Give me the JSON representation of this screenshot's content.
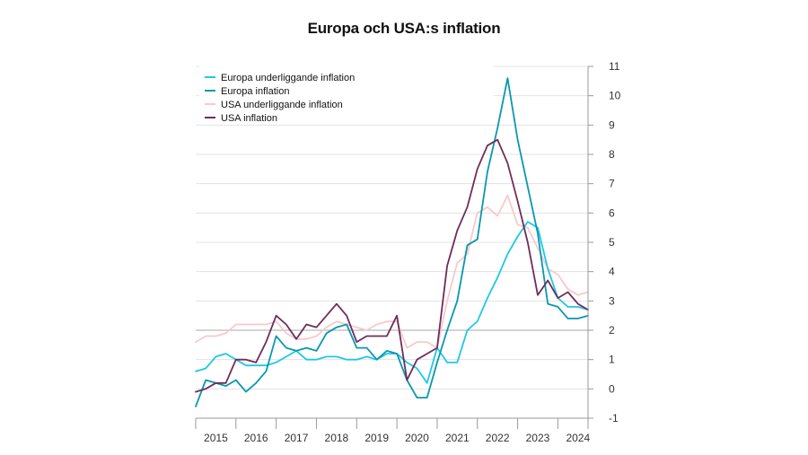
{
  "chart_data": {
    "type": "line",
    "title": "Europa och USA:s inflation",
    "xlabel": "",
    "ylabel": "",
    "ylim": [
      -1,
      11
    ],
    "y_ticks": [
      "-1",
      "0",
      "1",
      "2",
      "3",
      "4",
      "5",
      "6",
      "7",
      "8",
      "9",
      "10",
      "11"
    ],
    "x_ticks": [
      "2015",
      "2016",
      "2017",
      "2018",
      "2019",
      "2020",
      "2021",
      "2022",
      "2023",
      "2024"
    ],
    "x_range": [
      2015.0,
      2024.75
    ],
    "reference_line": 2,
    "legend_position": "top-left",
    "series": [
      {
        "name": "Europa underliggande inflation",
        "color": "#20c8e4",
        "x": [
          2015.0,
          2015.25,
          2015.5,
          2015.75,
          2016.0,
          2016.25,
          2016.5,
          2016.75,
          2017.0,
          2017.25,
          2017.5,
          2017.75,
          2018.0,
          2018.25,
          2018.5,
          2018.75,
          2019.0,
          2019.25,
          2019.5,
          2019.75,
          2020.0,
          2020.25,
          2020.5,
          2020.75,
          2021.0,
          2021.25,
          2021.5,
          2021.75,
          2022.0,
          2022.25,
          2022.5,
          2022.75,
          2023.0,
          2023.25,
          2023.5,
          2023.75,
          2024.0,
          2024.25,
          2024.5,
          2024.75
        ],
        "values": [
          0.6,
          0.7,
          1.1,
          1.2,
          1.0,
          0.8,
          0.8,
          0.8,
          0.9,
          1.1,
          1.3,
          1.0,
          1.0,
          1.1,
          1.1,
          1.0,
          1.0,
          1.1,
          1.0,
          1.2,
          1.2,
          0.9,
          0.7,
          0.2,
          1.4,
          0.9,
          0.9,
          2.0,
          2.3,
          3.1,
          3.8,
          4.6,
          5.2,
          5.7,
          5.5,
          4.1,
          3.1,
          2.8,
          2.8,
          2.7
        ]
      },
      {
        "name": "Europa inflation",
        "color": "#0a98ad",
        "x": [
          2015.0,
          2015.25,
          2015.5,
          2015.75,
          2016.0,
          2016.25,
          2016.5,
          2016.75,
          2017.0,
          2017.25,
          2017.5,
          2017.75,
          2018.0,
          2018.25,
          2018.5,
          2018.75,
          2019.0,
          2019.25,
          2019.5,
          2019.75,
          2020.0,
          2020.25,
          2020.5,
          2020.75,
          2021.0,
          2021.25,
          2021.5,
          2021.75,
          2022.0,
          2022.25,
          2022.5,
          2022.75,
          2023.0,
          2023.25,
          2023.5,
          2023.75,
          2024.0,
          2024.25,
          2024.5,
          2024.75
        ],
        "values": [
          -0.6,
          0.3,
          0.2,
          0.1,
          0.3,
          -0.1,
          0.2,
          0.6,
          1.8,
          1.4,
          1.3,
          1.4,
          1.3,
          1.9,
          2.1,
          2.2,
          1.4,
          1.4,
          1.0,
          1.3,
          1.2,
          0.3,
          -0.3,
          -0.3,
          0.9,
          2.0,
          3.0,
          4.9,
          5.1,
          7.4,
          8.9,
          10.6,
          8.5,
          6.9,
          5.3,
          2.9,
          2.8,
          2.4,
          2.4,
          2.5
        ]
      },
      {
        "name": "USA underliggande inflation",
        "color": "#f8c9cc",
        "x": [
          2015.0,
          2015.25,
          2015.5,
          2015.75,
          2016.0,
          2016.25,
          2016.5,
          2016.75,
          2017.0,
          2017.25,
          2017.5,
          2017.75,
          2018.0,
          2018.25,
          2018.5,
          2018.75,
          2019.0,
          2019.25,
          2019.5,
          2019.75,
          2020.0,
          2020.25,
          2020.5,
          2020.75,
          2021.0,
          2021.25,
          2021.5,
          2021.75,
          2022.0,
          2022.25,
          2022.5,
          2022.75,
          2023.0,
          2023.25,
          2023.5,
          2023.75,
          2024.0,
          2024.25,
          2024.5,
          2024.75
        ],
        "values": [
          1.6,
          1.8,
          1.8,
          1.9,
          2.2,
          2.2,
          2.2,
          2.2,
          2.3,
          1.9,
          1.7,
          1.7,
          1.8,
          2.1,
          2.3,
          2.2,
          2.1,
          2.0,
          2.2,
          2.3,
          2.3,
          1.4,
          1.6,
          1.6,
          1.4,
          3.0,
          4.3,
          4.6,
          6.0,
          6.2,
          5.9,
          6.6,
          5.6,
          5.5,
          4.8,
          4.1,
          3.9,
          3.4,
          3.2,
          3.3
        ]
      },
      {
        "name": "USA inflation",
        "color": "#6e2d5c",
        "x": [
          2015.0,
          2015.25,
          2015.5,
          2015.75,
          2016.0,
          2016.25,
          2016.5,
          2016.75,
          2017.0,
          2017.25,
          2017.5,
          2017.75,
          2018.0,
          2018.25,
          2018.5,
          2018.75,
          2019.0,
          2019.25,
          2019.5,
          2019.75,
          2020.0,
          2020.25,
          2020.5,
          2020.75,
          2021.0,
          2021.25,
          2021.5,
          2021.75,
          2022.0,
          2022.25,
          2022.5,
          2022.75,
          2023.0,
          2023.25,
          2023.5,
          2023.75,
          2024.0,
          2024.25,
          2024.5,
          2024.75
        ],
        "values": [
          -0.1,
          0.0,
          0.2,
          0.2,
          1.0,
          1.0,
          0.9,
          1.6,
          2.5,
          2.2,
          1.7,
          2.2,
          2.1,
          2.5,
          2.9,
          2.5,
          1.6,
          1.8,
          1.8,
          1.8,
          2.5,
          0.3,
          1.0,
          1.2,
          1.4,
          4.2,
          5.4,
          6.2,
          7.5,
          8.3,
          8.5,
          7.7,
          6.4,
          5.0,
          3.2,
          3.7,
          3.1,
          3.3,
          2.9,
          2.7
        ]
      }
    ]
  }
}
